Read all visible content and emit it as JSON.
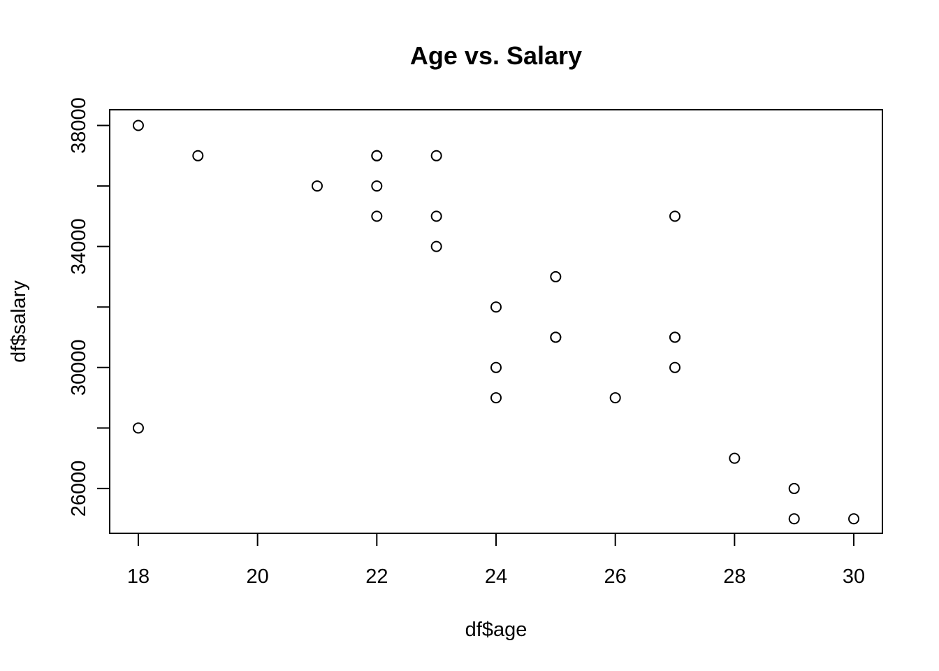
{
  "chart_data": {
    "type": "scatter",
    "title": "Age vs. Salary",
    "xlabel": "df$age",
    "ylabel": "df$salary",
    "xlim": [
      17.52,
      30.48
    ],
    "ylim": [
      24520,
      38520
    ],
    "xticks": [
      18,
      20,
      22,
      24,
      26,
      28,
      30
    ],
    "yticks": [
      26000,
      28000,
      30000,
      32000,
      34000,
      36000,
      38000
    ],
    "ytick_labels_shown": [
      26000,
      30000,
      34000,
      38000
    ],
    "grid": false,
    "legend": "none",
    "points": [
      {
        "x": 18,
        "y": 38000
      },
      {
        "x": 18,
        "y": 28000
      },
      {
        "x": 19,
        "y": 37000
      },
      {
        "x": 21,
        "y": 36000
      },
      {
        "x": 22,
        "y": 37000
      },
      {
        "x": 22,
        "y": 37000
      },
      {
        "x": 22,
        "y": 36000
      },
      {
        "x": 22,
        "y": 35000
      },
      {
        "x": 23,
        "y": 37000
      },
      {
        "x": 23,
        "y": 35000
      },
      {
        "x": 23,
        "y": 34000
      },
      {
        "x": 24,
        "y": 32000
      },
      {
        "x": 24,
        "y": 30000
      },
      {
        "x": 24,
        "y": 29000
      },
      {
        "x": 25,
        "y": 33000
      },
      {
        "x": 25,
        "y": 31000
      },
      {
        "x": 25,
        "y": 31000
      },
      {
        "x": 26,
        "y": 29000
      },
      {
        "x": 27,
        "y": 35000
      },
      {
        "x": 27,
        "y": 31000
      },
      {
        "x": 27,
        "y": 31000
      },
      {
        "x": 27,
        "y": 30000
      },
      {
        "x": 28,
        "y": 27000
      },
      {
        "x": 29,
        "y": 26000
      },
      {
        "x": 29,
        "y": 25000
      },
      {
        "x": 30,
        "y": 25000
      }
    ]
  }
}
